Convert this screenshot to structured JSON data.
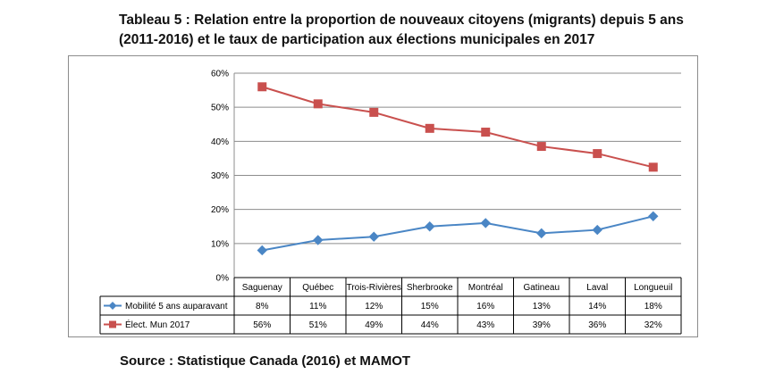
{
  "title_line1": "Tableau 5 : Relation entre la proportion de nouveaux citoyens (migrants) depuis 5 ans",
  "title_line2": "(2011-2016) et le taux de participation aux élections municipales en 2017",
  "source": "Source : Statistique Canada (2016) et MAMOT",
  "chart_data": {
    "type": "line",
    "categories": [
      "Saguenay",
      "Québec",
      "Trois-Rivières",
      "Sherbrooke",
      "Montréal",
      "Gatineau",
      "Laval",
      "Longueuil"
    ],
    "ylim": [
      0,
      60
    ],
    "yticks": [
      "0%",
      "10%",
      "20%",
      "30%",
      "40%",
      "50%",
      "60%"
    ],
    "grid": true,
    "legend": "data-table",
    "series": [
      {
        "name": "Mobilité 5 ans auparavant",
        "values": [
          8,
          11,
          12,
          15,
          16,
          13,
          14,
          18
        ],
        "labels": [
          "8%",
          "11%",
          "12%",
          "15%",
          "16%",
          "13%",
          "14%",
          "18%"
        ],
        "color": "#4a86c5",
        "marker": "diamond"
      },
      {
        "name": "Élect. Mun 2017",
        "values": [
          56,
          51,
          48.5,
          43.8,
          42.7,
          38.5,
          36.4,
          32.4
        ],
        "labels": [
          "56%",
          "51%",
          "49%",
          "44%",
          "43%",
          "39%",
          "36%",
          "32%"
        ],
        "color": "#c9504e",
        "marker": "square"
      }
    ]
  }
}
